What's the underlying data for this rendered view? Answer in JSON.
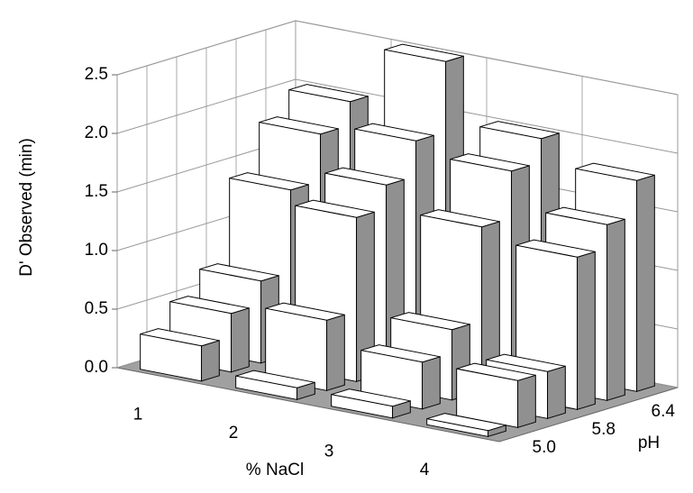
{
  "chart_data": {
    "type": "bar3d",
    "y_label": "D' Observed (min)",
    "x_label": "% NaCl",
    "z_label": "pH",
    "categories": [
      "1",
      "2",
      "3",
      "4"
    ],
    "depth_categories": [
      "5.0",
      null,
      "5.8",
      null,
      "6.4",
      null
    ],
    "series": [
      {
        "values": [
          0.3,
          0.1,
          0.1,
          0.05
        ]
      },
      {
        "values": [
          0.5,
          0.6,
          0.4,
          0.4
        ]
      },
      {
        "values": [
          0.7,
          1.4,
          0.6,
          0.4
        ]
      },
      {
        "values": [
          1.4,
          1.6,
          1.4,
          1.3
        ]
      },
      {
        "values": [
          1.8,
          1.9,
          1.8,
          1.5
        ]
      },
      {
        "values": [
          2.0,
          2.5,
          2.0,
          1.8
        ]
      }
    ],
    "color": "#ffffff",
    "side_color": "#909090",
    "ylim": [
      0,
      2.5
    ],
    "yticks": [
      {
        "value": 0,
        "label": "0.0"
      },
      {
        "value": 0.5,
        "label": "0.5"
      },
      {
        "value": 1,
        "label": "1.0"
      },
      {
        "value": 1.5,
        "label": "1.5"
      },
      {
        "value": 2,
        "label": "2.0"
      },
      {
        "value": 2.5,
        "label": "2.5"
      }
    ],
    "grid": true
  }
}
